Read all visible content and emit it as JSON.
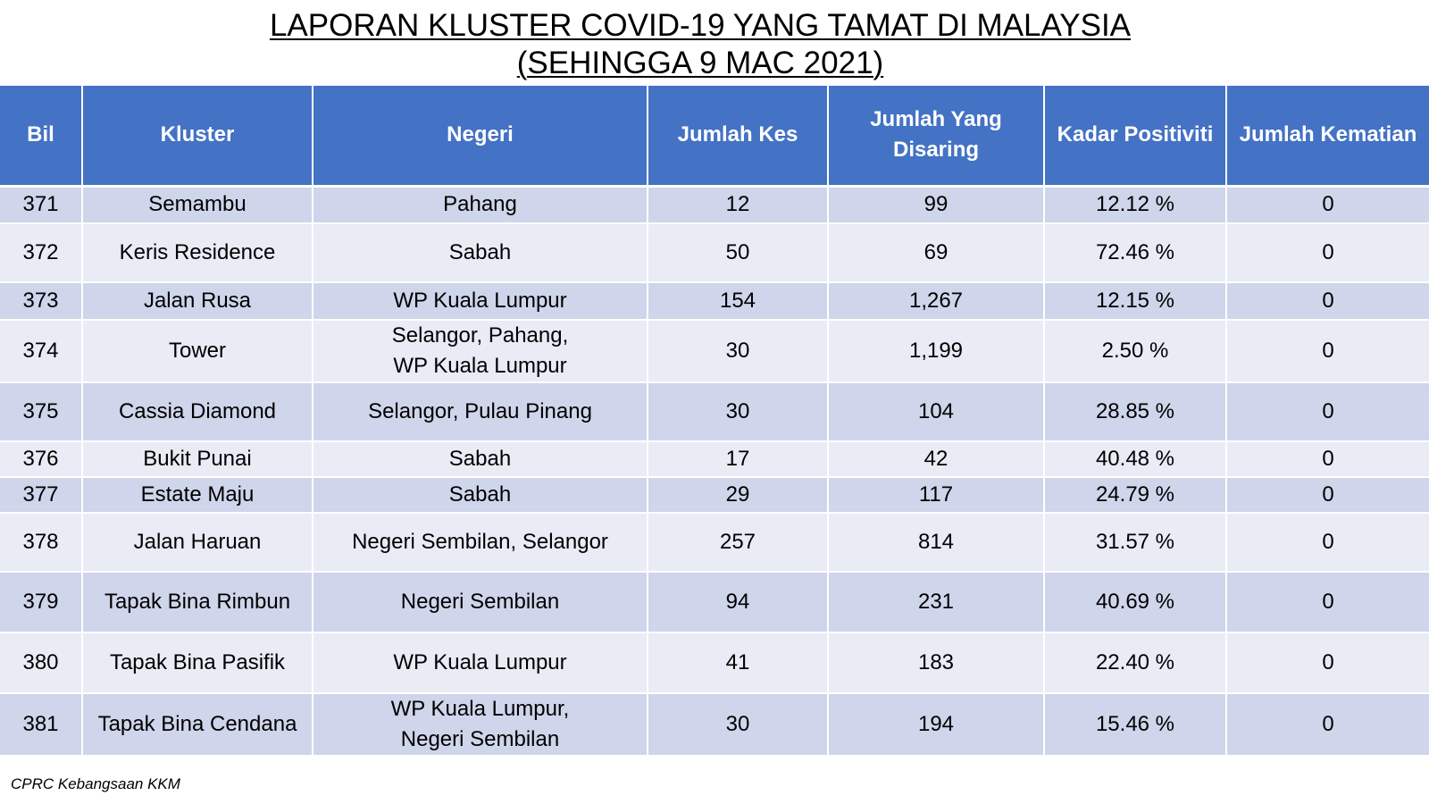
{
  "title": {
    "line1": "LAPORAN KLUSTER COVID-19 YANG TAMAT DI MALAYSIA",
    "line2": "(SEHINGGA  9 MAC 2021)"
  },
  "table": {
    "headers": [
      "Bil",
      "Kluster",
      "Negeri",
      "Jumlah Kes",
      "Jumlah Yang Disaring",
      "Kadar Positiviti",
      "Jumlah Kematian"
    ],
    "rows": [
      [
        "371",
        "Semambu",
        "Pahang",
        "12",
        "99",
        "12.12 %",
        "0"
      ],
      [
        "372",
        "Keris Residence",
        "Sabah",
        "50",
        "69",
        "72.46 %",
        "0"
      ],
      [
        "373",
        "Jalan Rusa",
        "WP Kuala Lumpur",
        "154",
        "1,267",
        "12.15 %",
        "0"
      ],
      [
        "374",
        "Tower",
        "Selangor, Pahang,\nWP Kuala Lumpur",
        "30",
        "1,199",
        "2.50 %",
        "0"
      ],
      [
        "375",
        "Cassia Diamond",
        "Selangor, Pulau Pinang",
        "30",
        "104",
        "28.85 %",
        "0"
      ],
      [
        "376",
        "Bukit Punai",
        "Sabah",
        "17",
        "42",
        "40.48 %",
        "0"
      ],
      [
        "377",
        "Estate Maju",
        "Sabah",
        "29",
        "117",
        "24.79 %",
        "0"
      ],
      [
        "378",
        "Jalan Haruan",
        "Negeri Sembilan, Selangor",
        "257",
        "814",
        "31.57 %",
        "0"
      ],
      [
        "379",
        "Tapak Bina Rimbun",
        "Negeri Sembilan",
        "94",
        "231",
        "40.69 %",
        "0"
      ],
      [
        "380",
        "Tapak Bina Pasifik",
        "WP Kuala Lumpur",
        "41",
        "183",
        "22.40 %",
        "0"
      ],
      [
        "381",
        "Tapak Bina Cendana",
        "WP Kuala Lumpur,\nNegeri Sembilan",
        "30",
        "194",
        "15.46 %",
        "0"
      ]
    ]
  },
  "source": "CPRC Kebangsaan KKM",
  "colors": {
    "header_bg": "#4472c4",
    "row_odd": "#cfd5ea",
    "row_even": "#e9ebf5"
  }
}
